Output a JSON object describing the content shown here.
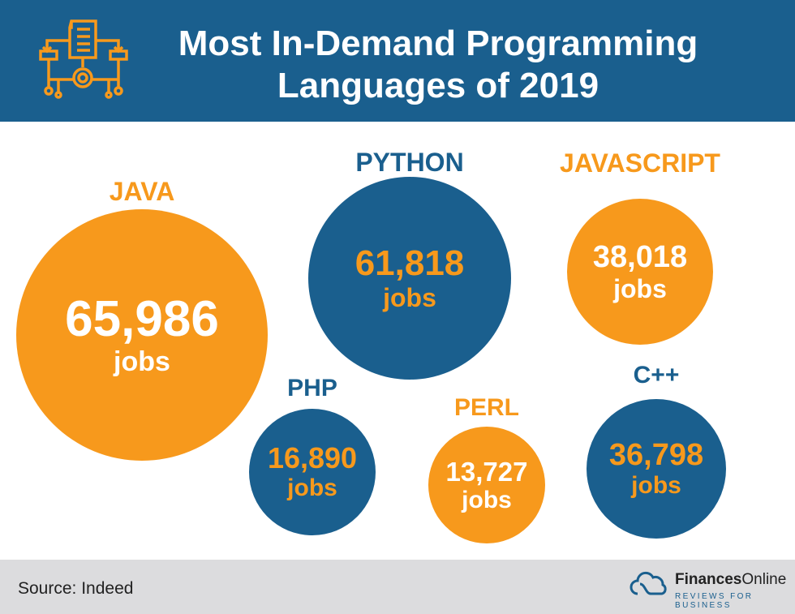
{
  "header": {
    "title": "Most In-Demand Programming Languages of 2019"
  },
  "colors": {
    "blue": "#1a5f8e",
    "orange": "#f7991c"
  },
  "chart_data": {
    "type": "bubble",
    "title": "Most In-Demand Programming Languages of 2019",
    "unit": "jobs",
    "categories": [
      "JAVA",
      "PYTHON",
      "JAVASCRIPT",
      "PHP",
      "PERL",
      "C++"
    ],
    "values": [
      65986,
      61818,
      38018,
      16890,
      13727,
      36798
    ],
    "value_labels": [
      "65,986",
      "61,818",
      "38,018",
      "16,890",
      "13,727",
      "36,798"
    ]
  },
  "footer": {
    "source": "Source: Indeed",
    "brand_bold": "Finances",
    "brand_light": "Online",
    "tagline": "REVIEWS FOR BUSINESS"
  }
}
